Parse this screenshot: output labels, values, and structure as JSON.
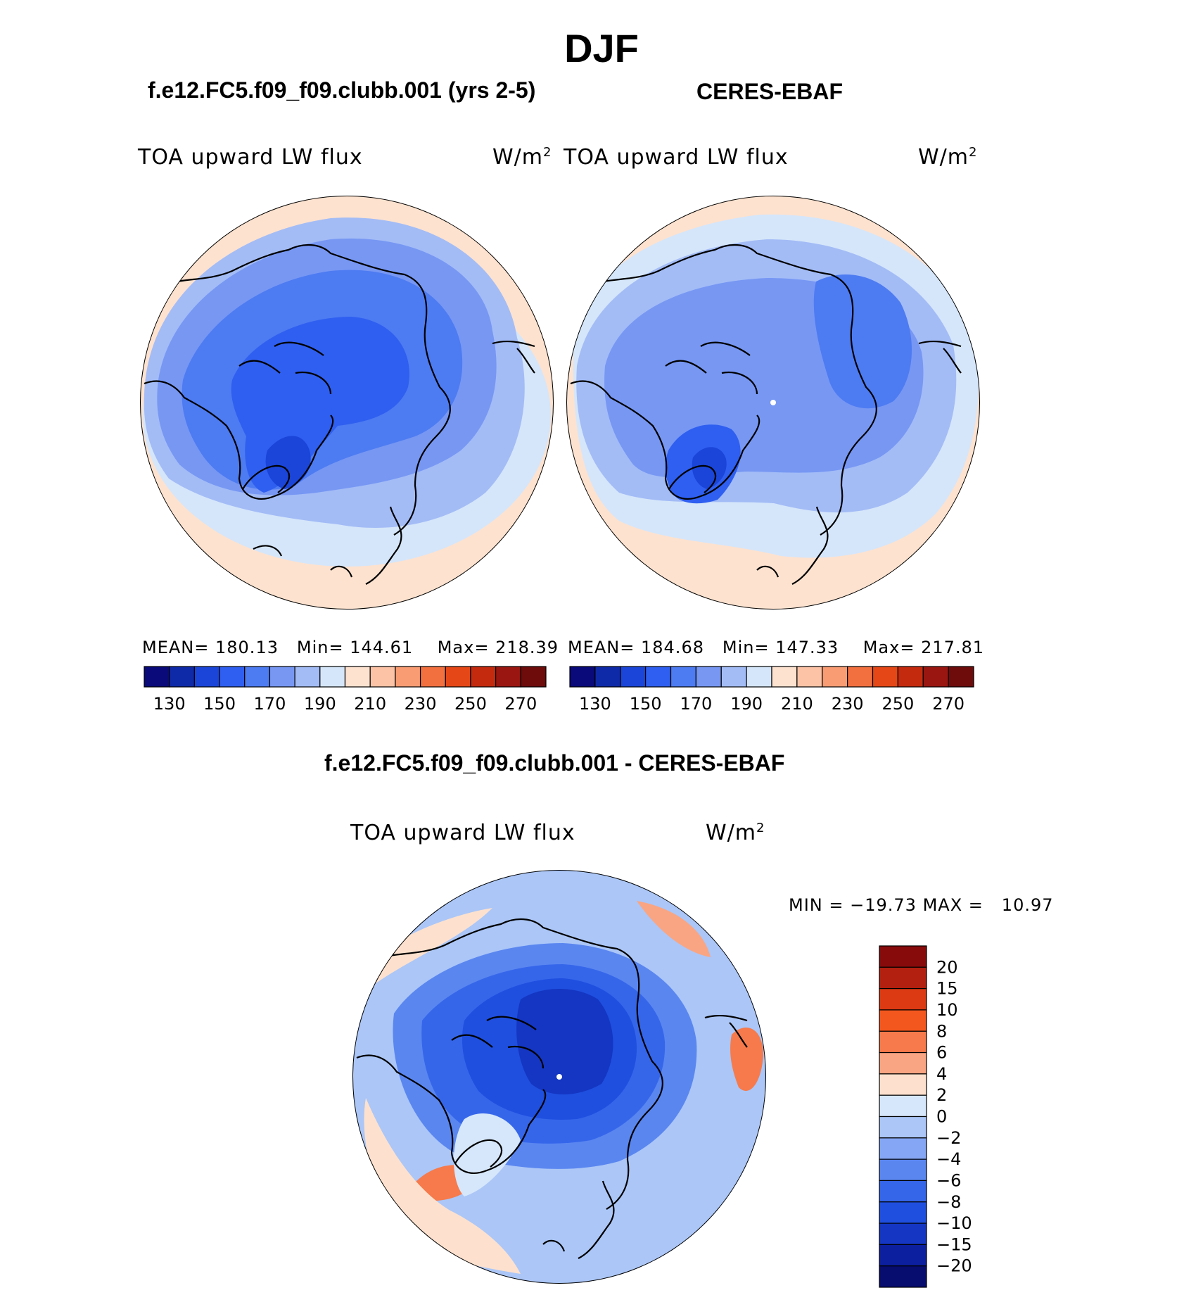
{
  "page": {
    "season": "DJF",
    "panel_left_title": "f.e12.FC5.f09_f09.clubb.001 (yrs 2-5)",
    "panel_right_title": "CERES-EBAF",
    "panel_diff_title": "f.e12.FC5.f09_f09.clubb.001 - CERES-EBAF"
  },
  "chart_data": [
    {
      "type": "heatmap",
      "projection": "north-polar-stereographic",
      "title": "f.e12.FC5.f09_f09.clubb.001 (yrs 2-5)",
      "variable": "TOA upward LW flux",
      "units": "W/m",
      "units_sup": "2",
      "stats": {
        "mean_label": "MEAN=",
        "mean": "180.13",
        "min_label": "Min=",
        "min": "144.61",
        "max_label": "Max=",
        "max": "218.39"
      },
      "colorbar": {
        "levels": [
          130,
          140,
          150,
          160,
          170,
          180,
          190,
          200,
          210,
          220,
          230,
          240,
          250,
          260,
          270
        ],
        "tick_labels": [
          "130",
          "150",
          "170",
          "190",
          "210",
          "230",
          "250",
          "270"
        ],
        "colors": [
          "#0a0a7a",
          "#0f2aa8",
          "#1a45d8",
          "#2f5ff0",
          "#4d7bf2",
          "#7797f3",
          "#a3bcf6",
          "#d5e6fa",
          "#fde2cf",
          "#fcc3a6",
          "#f99c74",
          "#f2703f",
          "#e54716",
          "#c42a0e",
          "#9a1610",
          "#6e0c0c"
        ]
      }
    },
    {
      "type": "heatmap",
      "projection": "north-polar-stereographic",
      "title": "CERES-EBAF",
      "variable": "TOA upward LW flux",
      "units": "W/m",
      "units_sup": "2",
      "stats": {
        "mean_label": "MEAN=",
        "mean": "184.68",
        "min_label": "Min=",
        "min": "147.33",
        "max_label": "Max=",
        "max": "217.81"
      },
      "colorbar": {
        "levels": [
          130,
          140,
          150,
          160,
          170,
          180,
          190,
          200,
          210,
          220,
          230,
          240,
          250,
          260,
          270
        ],
        "tick_labels": [
          "130",
          "150",
          "170",
          "190",
          "210",
          "230",
          "250",
          "270"
        ],
        "colors": [
          "#0a0a7a",
          "#0f2aa8",
          "#1a45d8",
          "#2f5ff0",
          "#4d7bf2",
          "#7797f3",
          "#a3bcf6",
          "#d5e6fa",
          "#fde2cf",
          "#fcc3a6",
          "#f99c74",
          "#f2703f",
          "#e54716",
          "#c42a0e",
          "#9a1610",
          "#6e0c0c"
        ]
      }
    },
    {
      "type": "heatmap",
      "projection": "north-polar-stereographic",
      "title": "f.e12.FC5.f09_f09.clubb.001 - CERES-EBAF",
      "variable": "TOA upward LW flux",
      "units": "W/m",
      "units_sup": "2",
      "stats": {
        "min_label": "MIN =",
        "min": "−19.73",
        "max_label": "MAX =",
        "max": "10.97"
      },
      "colorbar": {
        "orientation": "vertical",
        "levels": [
          20,
          15,
          10,
          8,
          6,
          4,
          2,
          0,
          -2,
          -4,
          -6,
          -8,
          -10,
          -15,
          -20
        ],
        "tick_labels": [
          "20",
          "15",
          "10",
          "8",
          "6",
          "4",
          "2",
          "0",
          "−2",
          "−4",
          "−6",
          "−8",
          "−10",
          "−15",
          "−20"
        ],
        "colors_top_to_bottom": [
          "#870b0b",
          "#b3200f",
          "#dc3a12",
          "#f4571d",
          "#f67a4b",
          "#f9a583",
          "#fde1ce",
          "#d6e7fb",
          "#abc6f7",
          "#84a6f4",
          "#5a86f0",
          "#3566ea",
          "#1f4fdf",
          "#1436c2",
          "#0c1f9e",
          "#070c6f"
        ]
      }
    }
  ]
}
